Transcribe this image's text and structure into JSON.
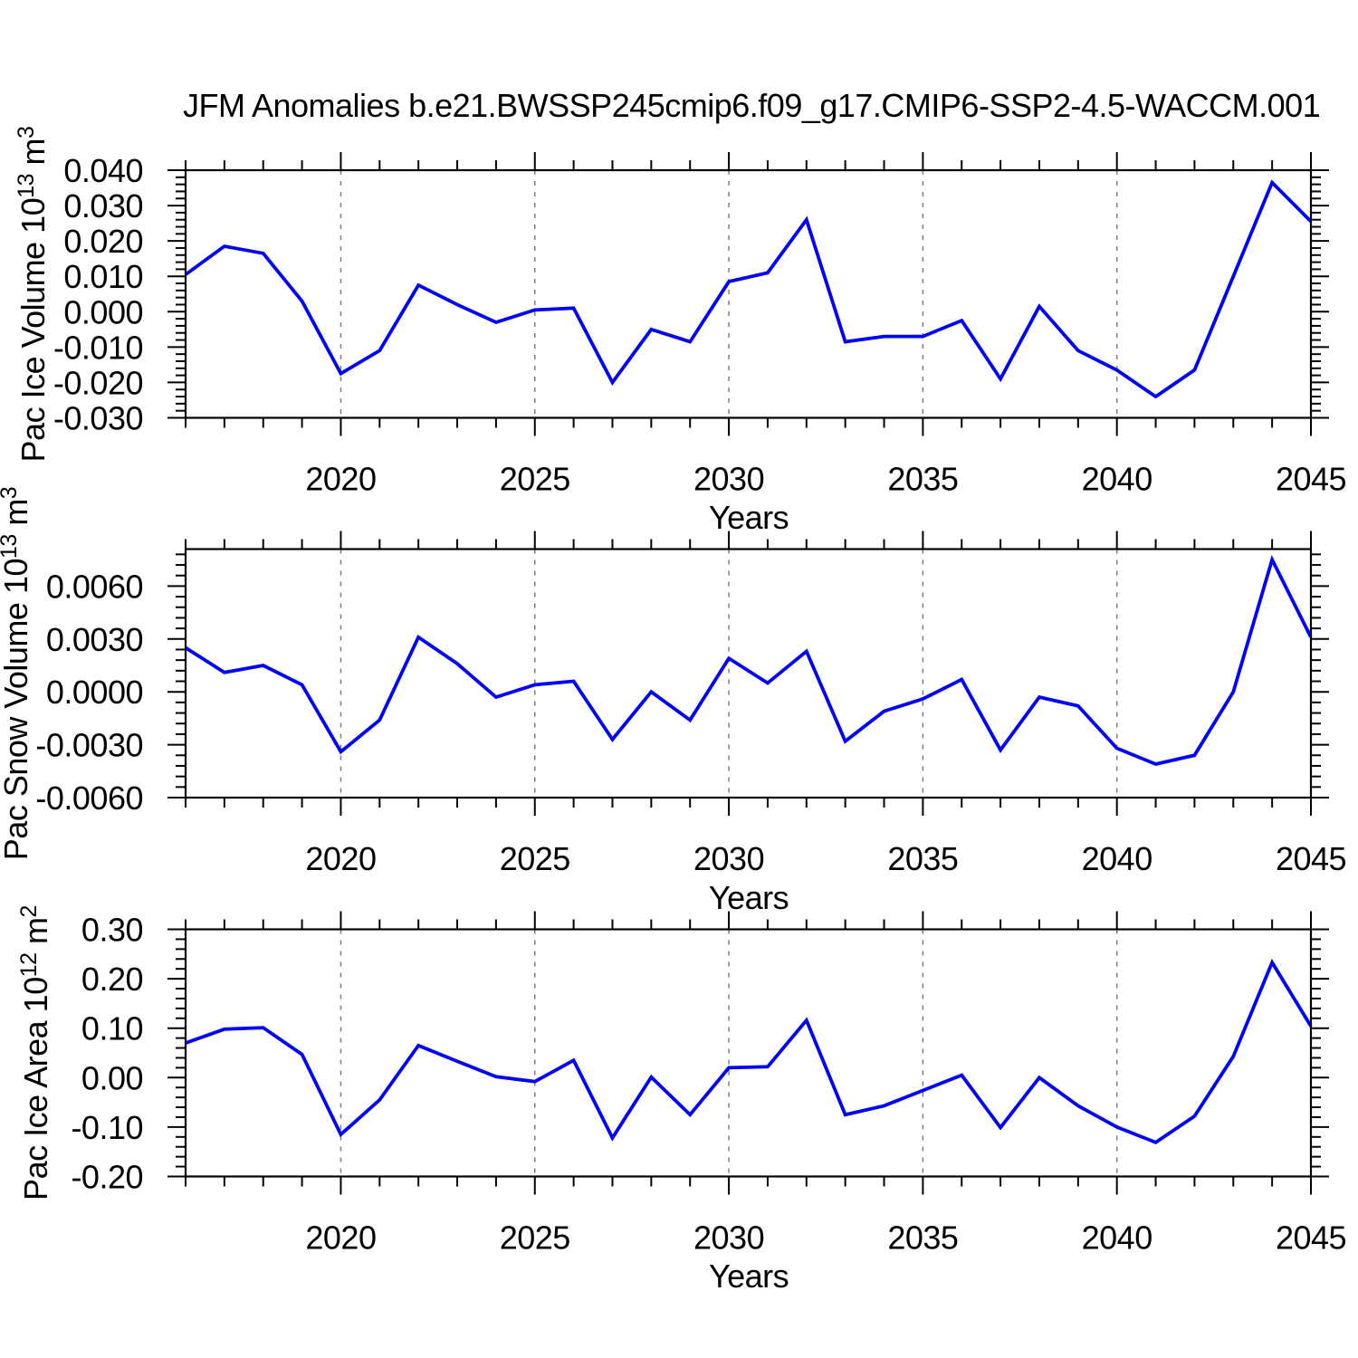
{
  "title": "JFM Anomalies b.e21.BWSSP245cmip6.f09_g17.CMIP6-SSP2-4.5-WACCM.001",
  "colors": {
    "line": "#0000ff",
    "grid": "#7f7f7f",
    "frame": "#000000",
    "background": "#ffffff",
    "text": "#000000"
  },
  "chart_data": [
    {
      "type": "line",
      "title": "JFM Anomalies b.e21.BWSSP245cmip6.f09_g17.CMIP6-SSP2-4.5-WACCM.001",
      "xlabel": "Years",
      "ylabel": "Pac Ice Volume 10^13 m^3",
      "ylabel_parts": {
        "base": "Pac Ice Volume 10",
        "exp": "13",
        "unit": " m",
        "unit_exp": "3"
      },
      "x": [
        2016,
        2017,
        2018,
        2019,
        2020,
        2021,
        2022,
        2023,
        2024,
        2025,
        2026,
        2027,
        2028,
        2029,
        2030,
        2031,
        2032,
        2033,
        2034,
        2035,
        2036,
        2037,
        2038,
        2039,
        2040,
        2041,
        2042,
        2043,
        2044,
        2045
      ],
      "series": [
        {
          "name": "Pac Ice Volume anomaly",
          "values": [
            0.0105,
            0.0185,
            0.0165,
            0.003,
            -0.0175,
            -0.011,
            0.0075,
            0.002,
            -0.003,
            0.0005,
            0.001,
            -0.02,
            -0.005,
            -0.0085,
            0.0085,
            0.011,
            0.026,
            -0.0085,
            -0.007,
            -0.007,
            -0.0025,
            -0.019,
            0.0015,
            -0.011,
            -0.0165,
            -0.024,
            -0.0165,
            0.01,
            0.0365,
            0.0255
          ]
        }
      ],
      "ylim": [
        -0.03,
        0.04
      ],
      "yticks": [
        0.04,
        0.03,
        0.02,
        0.01,
        0.0,
        -0.01,
        -0.02,
        -0.03
      ],
      "ytick_labels": [
        "0.040",
        "0.030",
        "0.020",
        "0.010",
        "0.000",
        "-0.010",
        "-0.020",
        "-0.030"
      ],
      "ytick_minor_step": 0.002,
      "xticks": [
        2020,
        2025,
        2030,
        2035,
        2040,
        2045
      ],
      "gridlines_x": [
        2020,
        2025,
        2030,
        2035,
        2040
      ],
      "grid": "vertical-dashed",
      "legend": "none"
    },
    {
      "type": "line",
      "xlabel": "Years",
      "ylabel": "Pac Snow Volume 10^13 m^3",
      "ylabel_parts": {
        "base": "Pac Snow Volume 10",
        "exp": "13",
        "unit": " m",
        "unit_exp": "3"
      },
      "x": [
        2016,
        2017,
        2018,
        2019,
        2020,
        2021,
        2022,
        2023,
        2024,
        2025,
        2026,
        2027,
        2028,
        2029,
        2030,
        2031,
        2032,
        2033,
        2034,
        2035,
        2036,
        2037,
        2038,
        2039,
        2040,
        2041,
        2042,
        2043,
        2044,
        2045
      ],
      "series": [
        {
          "name": "Pac Snow Volume anomaly",
          "values": [
            0.0025,
            0.0011,
            0.0015,
            0.0004,
            -0.0034,
            -0.0016,
            0.0031,
            0.0016,
            -0.0003,
            0.0004,
            0.0006,
            -0.0027,
            0.0,
            -0.0016,
            0.0019,
            0.0005,
            0.0023,
            -0.0028,
            -0.0011,
            -0.0004,
            0.0007,
            -0.0033,
            -0.0003,
            -0.0008,
            -0.0032,
            -0.0041,
            -0.0036,
            0.0,
            0.0075,
            0.0031
          ]
        }
      ],
      "ylim": [
        -0.006,
        0.0081
      ],
      "yticks": [
        0.006,
        0.003,
        0.0,
        -0.003,
        -0.006
      ],
      "ytick_labels": [
        "0.0060",
        "0.0030",
        "0.0000",
        "-0.0030",
        "-0.0060"
      ],
      "ytick_minor_step": 0.0006,
      "xticks": [
        2020,
        2025,
        2030,
        2035,
        2040,
        2045
      ],
      "gridlines_x": [
        2020,
        2025,
        2030,
        2035,
        2040
      ],
      "grid": "vertical-dashed",
      "legend": "none"
    },
    {
      "type": "line",
      "xlabel": "Years",
      "ylabel": "Pac Ice Area 10^12 m^2",
      "ylabel_parts": {
        "base": "Pac Ice Area 10",
        "exp": "12",
        "unit": " m",
        "unit_exp": "2"
      },
      "x": [
        2016,
        2017,
        2018,
        2019,
        2020,
        2021,
        2022,
        2023,
        2024,
        2025,
        2026,
        2027,
        2028,
        2029,
        2030,
        2031,
        2032,
        2033,
        2034,
        2035,
        2036,
        2037,
        2038,
        2039,
        2040,
        2041,
        2042,
        2043,
        2044,
        2045
      ],
      "series": [
        {
          "name": "Pac Ice Area anomaly",
          "values": [
            0.07,
            0.098,
            0.101,
            0.047,
            -0.115,
            -0.045,
            0.065,
            0.033,
            0.002,
            -0.008,
            0.035,
            -0.122,
            0.001,
            -0.075,
            0.02,
            0.022,
            0.116,
            -0.075,
            -0.057,
            -0.026,
            0.005,
            -0.101,
            0.0,
            -0.057,
            -0.1,
            -0.131,
            -0.078,
            0.043,
            0.233,
            0.104
          ]
        }
      ],
      "ylim": [
        -0.2,
        0.3
      ],
      "yticks": [
        0.3,
        0.2,
        0.1,
        0.0,
        -0.1,
        -0.2
      ],
      "ytick_labels": [
        "0.30",
        "0.20",
        "0.10",
        "0.00",
        "-0.10",
        "-0.20"
      ],
      "ytick_minor_step": 0.02,
      "xticks": [
        2020,
        2025,
        2030,
        2035,
        2040,
        2045
      ],
      "gridlines_x": [
        2020,
        2025,
        2030,
        2035,
        2040
      ],
      "grid": "vertical-dashed",
      "legend": "none"
    }
  ]
}
